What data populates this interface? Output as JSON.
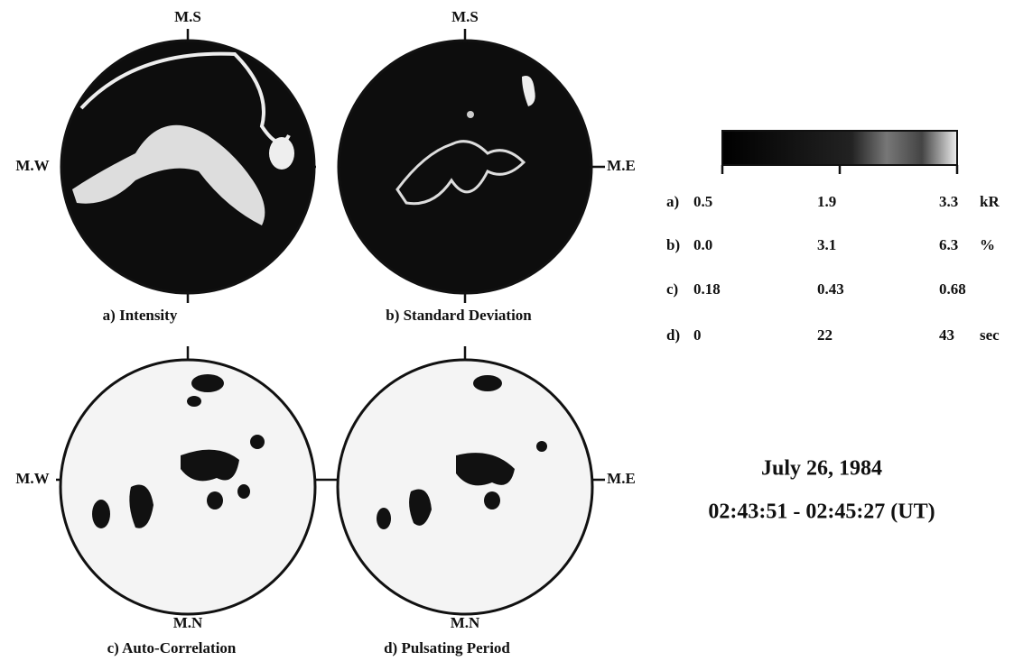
{
  "panels": [
    {
      "caption": "a) Intensity",
      "top": "M.S",
      "left": "M.W"
    },
    {
      "caption": "b) Standard Deviation",
      "top": "M.S",
      "right": "M.E"
    },
    {
      "caption": "c) Auto-Correlation",
      "left": "M.W",
      "bottom": "M.N"
    },
    {
      "caption": "d) Pulsating Period",
      "right": "M.E",
      "bottom": "M.N"
    }
  ],
  "scale": {
    "rows": [
      [
        "a)",
        "0.5",
        "1.9",
        "3.3",
        "kR"
      ],
      [
        "b)",
        "0.0",
        "3.1",
        "6.3",
        "%"
      ],
      [
        "c)",
        "0.18",
        "0.43",
        "0.68"
      ],
      [
        "d)",
        "0",
        "22",
        "43",
        "sec"
      ]
    ]
  },
  "date": "July 26, 1984",
  "time_range": "02:43:51 - 02:45:27 (UT)"
}
